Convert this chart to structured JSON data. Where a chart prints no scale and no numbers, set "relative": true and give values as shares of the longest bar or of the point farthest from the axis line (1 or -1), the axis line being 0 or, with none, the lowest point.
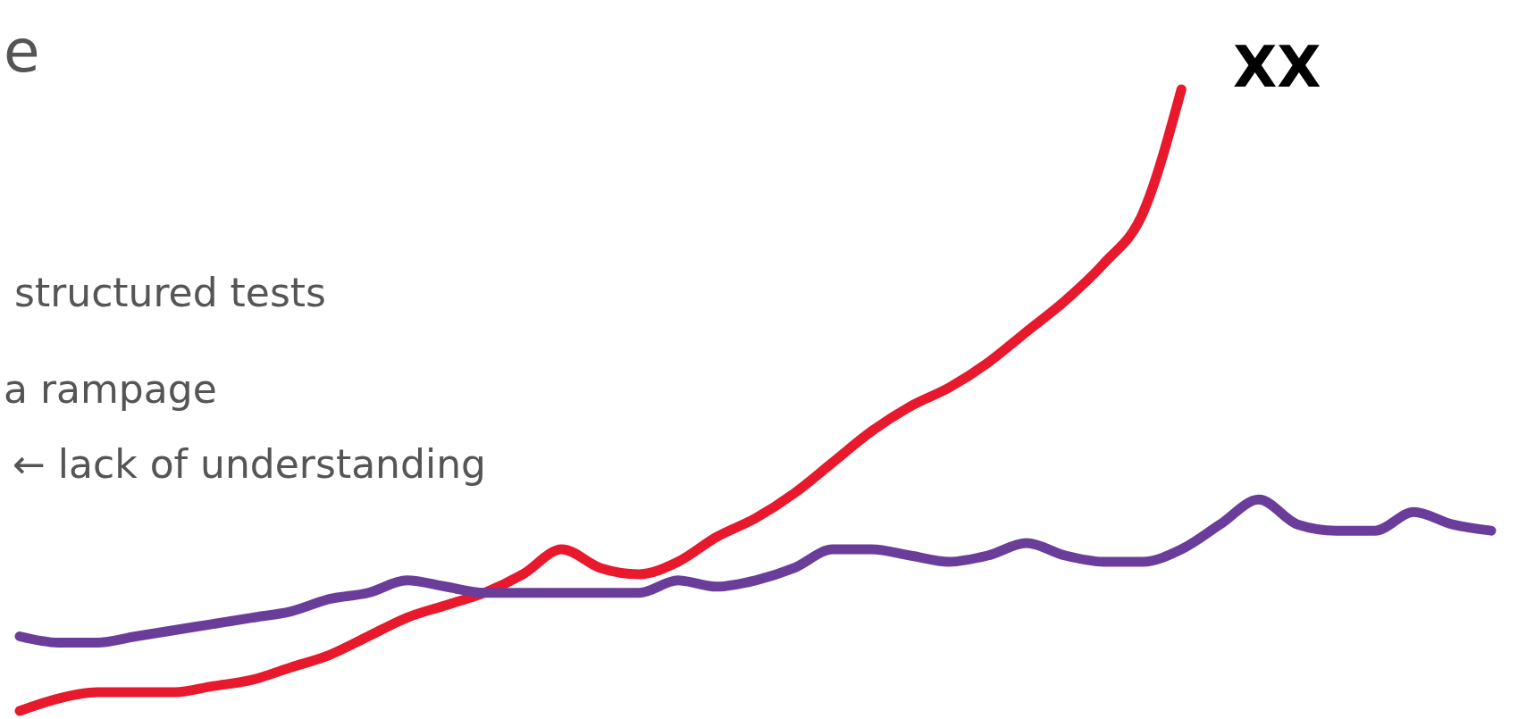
{
  "chart_data": {
    "type": "line",
    "relative": true,
    "line_style": "solid",
    "title": "e",
    "annotations": [
      "structured tests",
      "a rampage",
      "← lack of understanding",
      "XX"
    ],
    "categories": [
      null,
      null,
      null,
      null,
      null,
      null,
      null,
      null,
      null,
      null,
      null,
      null,
      null,
      null,
      null,
      null,
      null,
      null,
      null,
      null,
      null,
      null,
      null,
      null,
      null,
      null,
      null,
      null,
      null,
      null,
      null,
      null,
      null,
      null,
      null,
      null,
      null,
      null,
      null
    ],
    "series": [
      {
        "color": "#e8192c",
        "values": [
          0,
          0.02,
          0.03,
          0.03,
          0.03,
          0.04,
          0.05,
          0.07,
          0.09,
          0.12,
          0.15,
          0.17,
          0.19,
          0.22,
          0.26,
          0.23,
          0.22,
          0.24,
          0.28,
          0.31,
          0.35,
          0.4,
          0.45,
          0.49,
          0.52,
          0.56,
          0.61,
          0.66,
          0.72,
          0.8,
          1,
          null,
          null,
          null,
          null,
          null,
          null,
          null,
          null
        ]
      },
      {
        "color": "#6a3d9a",
        "values": [
          0.12,
          0.11,
          0.11,
          0.12,
          0.13,
          0.14,
          0.15,
          0.16,
          0.18,
          0.19,
          0.21,
          0.2,
          0.19,
          0.19,
          0.19,
          0.19,
          0.19,
          0.21,
          0.2,
          0.21,
          0.23,
          0.26,
          0.26,
          0.25,
          0.24,
          0.25,
          0.27,
          0.25,
          0.24,
          0.24,
          0.26,
          0.3,
          0.34,
          0.3,
          0.29,
          0.29,
          0.32,
          0.3,
          0.29
        ]
      }
    ]
  }
}
